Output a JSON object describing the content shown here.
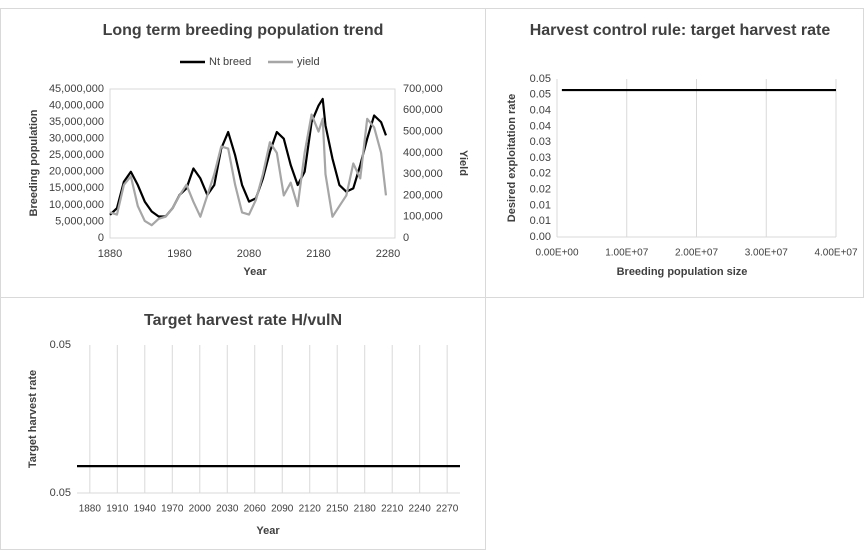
{
  "chart_data": [
    {
      "type": "line",
      "title": "Long term breeding population trend",
      "x_label": "Year",
      "y_label": "Breeding population",
      "y2_label": "Yield",
      "grid": false,
      "legend": "top",
      "x": [
        1880,
        1890,
        1900,
        1910,
        1920,
        1930,
        1940,
        1950,
        1960,
        1970,
        1980,
        1990,
        2000,
        2010,
        2020,
        2030,
        2040,
        2050,
        2060,
        2070,
        2080,
        2090,
        2100,
        2110,
        2120,
        2130,
        2140,
        2150,
        2160,
        2170,
        2180,
        2186,
        2190,
        2200,
        2210,
        2220,
        2230,
        2240,
        2250,
        2260,
        2270,
        2277
      ],
      "xlim": [
        1880,
        2290
      ],
      "xticks": [
        1880,
        1980,
        2080,
        2180,
        2280
      ],
      "ylim": [
        0,
        45000000
      ],
      "yticks": [
        {
          "value": 0,
          "label": "0"
        },
        {
          "value": 5000000,
          "label": "5,000,000"
        },
        {
          "value": 10000000,
          "label": "10,000,000"
        },
        {
          "value": 15000000,
          "label": "15,000,000"
        },
        {
          "value": 20000000,
          "label": "20,000,000"
        },
        {
          "value": 25000000,
          "label": "25,000,000"
        },
        {
          "value": 30000000,
          "label": "30,000,000"
        },
        {
          "value": 35000000,
          "label": "35,000,000"
        },
        {
          "value": 40000000,
          "label": "40,000,000"
        },
        {
          "value": 45000000,
          "label": "45,000,000"
        }
      ],
      "y2lim": [
        0,
        700000
      ],
      "y2ticks": [
        {
          "value": 0,
          "label": "0"
        },
        {
          "value": 100000,
          "label": "100,000"
        },
        {
          "value": 200000,
          "label": "200,000"
        },
        {
          "value": 300000,
          "label": "300,000"
        },
        {
          "value": 400000,
          "label": "400,000"
        },
        {
          "value": 500000,
          "label": "500,000"
        },
        {
          "value": 600000,
          "label": "600,000"
        },
        {
          "value": 700000,
          "label": "700,000"
        }
      ],
      "series": [
        {
          "name": "Nt breed",
          "color": "#000000",
          "axis": "y",
          "values": [
            7000000,
            9000000,
            17000000,
            20000000,
            16000000,
            11000000,
            8000000,
            6500000,
            6500000,
            9000000,
            13000000,
            15000000,
            21000000,
            18000000,
            13000000,
            16000000,
            27000000,
            32000000,
            25000000,
            16000000,
            11000000,
            12000000,
            18000000,
            26000000,
            32000000,
            30000000,
            22000000,
            16000000,
            20000000,
            35000000,
            40000000,
            42000000,
            34000000,
            24000000,
            16000000,
            14000000,
            15000000,
            22000000,
            30000000,
            37000000,
            35000000,
            31000000
          ]
        },
        {
          "name": "yield",
          "color": "#a6a6a6",
          "axis": "y2",
          "values": [
            120000,
            110000,
            250000,
            290000,
            150000,
            80000,
            60000,
            90000,
            100000,
            140000,
            200000,
            250000,
            170000,
            100000,
            200000,
            300000,
            430000,
            420000,
            250000,
            120000,
            110000,
            180000,
            300000,
            450000,
            400000,
            200000,
            260000,
            150000,
            400000,
            580000,
            500000,
            560000,
            300000,
            100000,
            150000,
            200000,
            350000,
            280000,
            560000,
            520000,
            400000,
            200000
          ]
        }
      ]
    },
    {
      "type": "line",
      "title": "Harvest control rule: target harvest rate",
      "x_label": "Breeding population size",
      "y_label": "Desired exploitation rate",
      "grid": "x",
      "x": [
        700000,
        40000000
      ],
      "xlim": [
        0,
        40000000
      ],
      "xticks": [
        {
          "value": 0,
          "label": "0.00E+00"
        },
        {
          "value": 10000000,
          "label": "1.00E+07"
        },
        {
          "value": 20000000,
          "label": "2.00E+07"
        },
        {
          "value": 30000000,
          "label": "3.00E+07"
        },
        {
          "value": 40000000,
          "label": "4.00E+07"
        }
      ],
      "ylim": [
        0,
        0.05
      ],
      "yticks": [
        {
          "value": 0,
          "label": "0.00"
        },
        {
          "value": 0.005,
          "label": "0.01"
        },
        {
          "value": 0.01,
          "label": "0.01"
        },
        {
          "value": 0.015,
          "label": "0.02"
        },
        {
          "value": 0.02,
          "label": "0.02"
        },
        {
          "value": 0.025,
          "label": "0.03"
        },
        {
          "value": 0.03,
          "label": "0.03"
        },
        {
          "value": 0.035,
          "label": "0.04"
        },
        {
          "value": 0.04,
          "label": "0.04"
        },
        {
          "value": 0.045,
          "label": "0.05"
        },
        {
          "value": 0.05,
          "label": "0.05"
        }
      ],
      "series": [
        {
          "color": "#000000",
          "axis": "y",
          "values": [
            0.0465,
            0.0465
          ]
        }
      ]
    },
    {
      "type": "line",
      "title": "Target harvest rate H/vulN",
      "x_label": "Year",
      "y_label": "Target harvest rate",
      "grid": "x",
      "x": [
        1866,
        2284
      ],
      "xlim": [
        1866,
        2284
      ],
      "xticks": [
        1880,
        1910,
        1940,
        1970,
        2000,
        2030,
        2060,
        2090,
        2120,
        2150,
        2180,
        2210,
        2240,
        2270
      ],
      "ylim": [
        0.0455,
        0.051
      ],
      "yticks": [
        {
          "value": 0.0455,
          "label": "0.05"
        },
        {
          "value": 0.051,
          "label": "0.05"
        }
      ],
      "series": [
        {
          "color": "#000000",
          "axis": "y",
          "values": [
            0.0465,
            0.0465
          ]
        }
      ]
    }
  ]
}
